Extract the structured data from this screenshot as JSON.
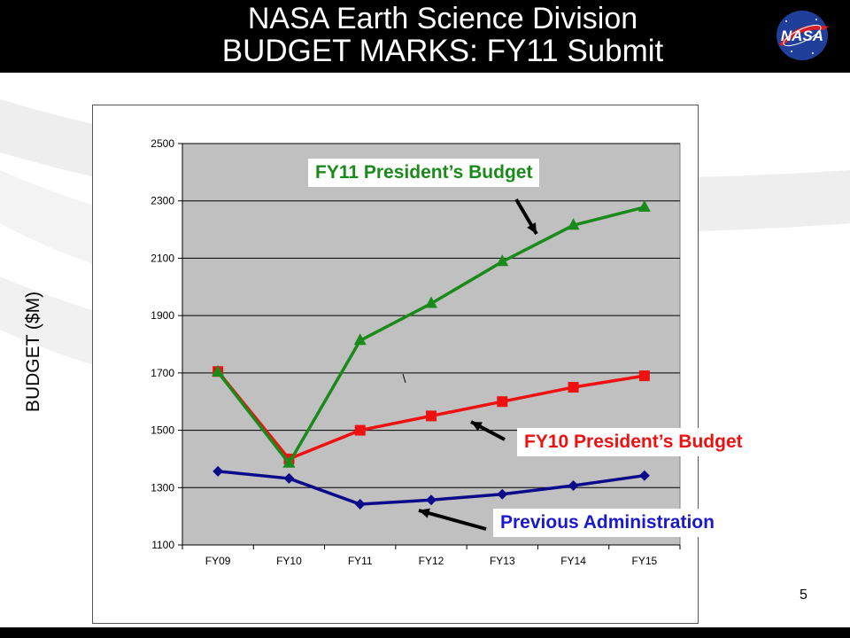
{
  "slide": {
    "title_line1": "NASA Earth Science Division",
    "title_line2": "BUDGET MARKS:  FY11 Submit",
    "page_number": "5",
    "logo_text": "NASA"
  },
  "colors": {
    "header_bg": "#000000",
    "plot_bg": "#c0c0c0",
    "fy11": "#1a8a1a",
    "fy10": "#ee1111",
    "previous": "#0a0a8a"
  },
  "chart_data": {
    "type": "line",
    "title": "",
    "xlabel": "",
    "ylabel": "BUDGET ($M)",
    "categories": [
      "FY09",
      "FY10",
      "FY11",
      "FY12",
      "FY13",
      "FY14",
      "FY15"
    ],
    "ylim": [
      1100,
      2500
    ],
    "yticks": [
      1100,
      1300,
      1500,
      1700,
      1900,
      2100,
      2300,
      2500
    ],
    "grid": true,
    "legend": "none",
    "series": [
      {
        "name": "FY11 President’s Budget",
        "marker": "triangle",
        "color": "#1a8a1a",
        "values": [
          1703,
          1385,
          1813,
          1942,
          2088,
          2215,
          2278
        ]
      },
      {
        "name": "FY10 President’s Budget",
        "marker": "square",
        "color": "#ee1111",
        "values": [
          1705,
          1400,
          1500,
          1550,
          1600,
          1650,
          1690
        ]
      },
      {
        "name": "Previous Administration",
        "marker": "diamond",
        "color": "#0a0a8a",
        "values": [
          1357,
          1332,
          1242,
          1257,
          1277,
          1307,
          1342
        ]
      }
    ]
  }
}
